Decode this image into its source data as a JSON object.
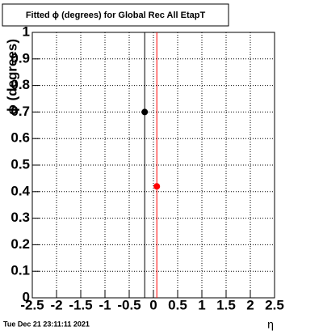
{
  "chart_data": {
    "type": "scatter",
    "title": "Fitted ϕ (degrees) for Global Rec All EtapT",
    "y_label": "ϕ (degrees)",
    "x_label": "η",
    "footer": "Tue Dec 21 23:11:11 2021",
    "series": [
      {
        "color": "#000000",
        "x": [
          -0.18
        ],
        "values": [
          0.7
        ],
        "errors": [
          1
        ]
      },
      {
        "color": "#ff0000",
        "x": [
          0.07
        ],
        "values": [
          0.42
        ],
        "errors": [
          1
        ]
      }
    ],
    "xlim": [
      -2.5,
      2.5
    ],
    "xticks": [
      -2.5,
      -2,
      -1.5,
      -1,
      -0.5,
      0,
      0.5,
      1,
      1.5,
      2,
      2.5
    ],
    "ylim": [
      0,
      1
    ],
    "yticks": [
      0,
      0.1,
      0.2,
      0.3,
      0.4,
      0.5,
      0.6,
      0.7,
      0.8,
      0.9,
      1
    ],
    "grid": true
  }
}
